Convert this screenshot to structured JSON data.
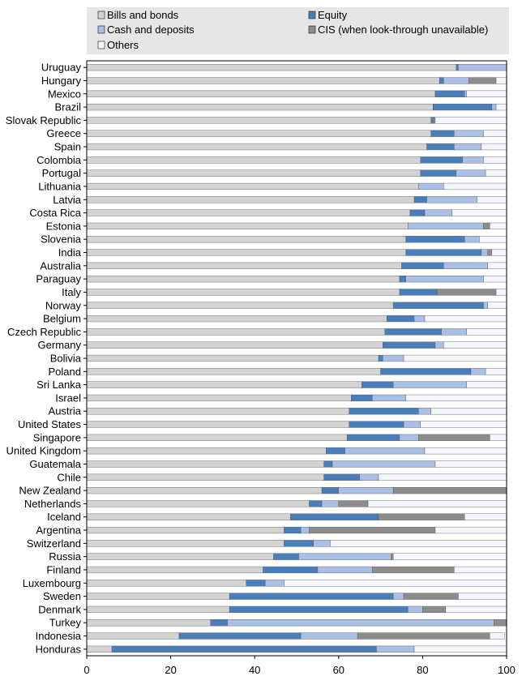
{
  "chart_data": {
    "type": "bar",
    "orientation": "horizontal",
    "stacked": true,
    "title": "",
    "xlabel": "",
    "ylabel": "",
    "xlim": [
      0,
      100
    ],
    "xticks": [
      "0",
      "20",
      "40",
      "60",
      "80",
      "100"
    ],
    "grid": false,
    "legend_position": "top",
    "legend": [
      {
        "name": "Bills and bonds",
        "color": "#d3d3d3"
      },
      {
        "name": "Equity",
        "color": "#4a7ebb"
      },
      {
        "name": "Cash and deposits",
        "color": "#a9bfe6"
      },
      {
        "name": "CIS (when look-through unavailable)",
        "color": "#8c8c8c"
      },
      {
        "name": "Others",
        "color": "#f3f7fd"
      }
    ],
    "categories": [
      "Uruguay",
      "Hungary",
      "Mexico",
      "Brazil",
      "Slovak Republic",
      "Greece",
      "Spain",
      "Colombia",
      "Portugal",
      "Lithuania",
      "Latvia",
      "Costa Rica",
      "Estonia",
      "Slovenia",
      "India",
      "Australia",
      "Paraguay",
      "Italy",
      "Norway",
      "Belgium",
      "Czech Republic",
      "Germany",
      "Bolivia",
      "Poland",
      "Sri Lanka",
      "Israel",
      "Austria",
      "United States",
      "Singapore",
      "United Kingdom",
      "Guatemala",
      "Chile",
      "New Zealand",
      "Netherlands",
      "Iceland",
      "Argentina",
      "Switzerland",
      "Russia",
      "Finland",
      "Luxembourg",
      "Sweden",
      "Denmark",
      "Turkey",
      "Indonesia",
      "Honduras"
    ],
    "series": [
      {
        "name": "Bills and bonds",
        "values": [
          88,
          84,
          83,
          82.5,
          82,
          82,
          81,
          79.5,
          79.5,
          79,
          78,
          77,
          76.5,
          76,
          76,
          75,
          74.5,
          74.5,
          73,
          71.5,
          71,
          70.5,
          69.5,
          70,
          65.5,
          63,
          62.5,
          62.5,
          62,
          57,
          56.5,
          56.5,
          56,
          53,
          48.5,
          47,
          47,
          44.5,
          42,
          38,
          34,
          34,
          29.5,
          22,
          6
        ]
      },
      {
        "name": "Equity",
        "values": [
          0.5,
          1,
          7,
          14,
          0.5,
          5.5,
          6.5,
          10,
          8.5,
          0,
          3,
          3.5,
          0,
          14,
          18,
          10,
          1.5,
          9,
          21.5,
          6.5,
          13.5,
          12.5,
          1,
          21.5,
          7.5,
          5,
          16.5,
          13,
          12.5,
          4.5,
          2,
          8.5,
          4,
          3,
          21,
          4,
          7,
          6,
          13,
          4.5,
          39,
          42.5,
          4,
          29,
          63
        ]
      },
      {
        "name": "Cash and deposits",
        "values": [
          11.5,
          6,
          0.5,
          1,
          0,
          7,
          6.5,
          5,
          7,
          6,
          12,
          6.5,
          18,
          3.5,
          1.5,
          10.5,
          18.5,
          0,
          1,
          2.5,
          6,
          2,
          5,
          3.5,
          17.5,
          8,
          3,
          4,
          4.5,
          19,
          24.5,
          4.5,
          13,
          4,
          0,
          2,
          4,
          22,
          13,
          4.5,
          2.5,
          3.5,
          63.5,
          13.5,
          9
        ]
      },
      {
        "name": "CIS (when look-through unavailable)",
        "values": [
          0,
          6.5,
          0,
          0,
          0.5,
          0,
          0,
          0,
          0,
          0,
          0,
          0,
          1.5,
          0,
          1,
          0,
          0,
          14,
          0,
          0,
          0,
          0,
          0,
          0,
          0,
          0,
          0,
          0,
          17,
          0,
          0,
          0,
          27,
          7,
          20.5,
          30,
          0,
          0.5,
          19.5,
          0,
          13,
          5.5,
          3,
          31.5,
          0
        ]
      },
      {
        "name": "Others",
        "values": [
          0,
          2.5,
          9.5,
          2.5,
          17,
          5.5,
          6,
          5.5,
          5,
          15,
          7,
          13,
          4,
          6.5,
          3.5,
          4.5,
          5.5,
          2.5,
          4.5,
          19.5,
          9.5,
          15,
          24.5,
          5,
          9.5,
          24,
          18,
          20.5,
          4,
          19.5,
          17,
          30.5,
          0,
          33,
          10,
          17,
          42,
          27,
          12.5,
          53,
          11.5,
          14.5,
          0,
          3.5,
          22
        ]
      }
    ]
  }
}
